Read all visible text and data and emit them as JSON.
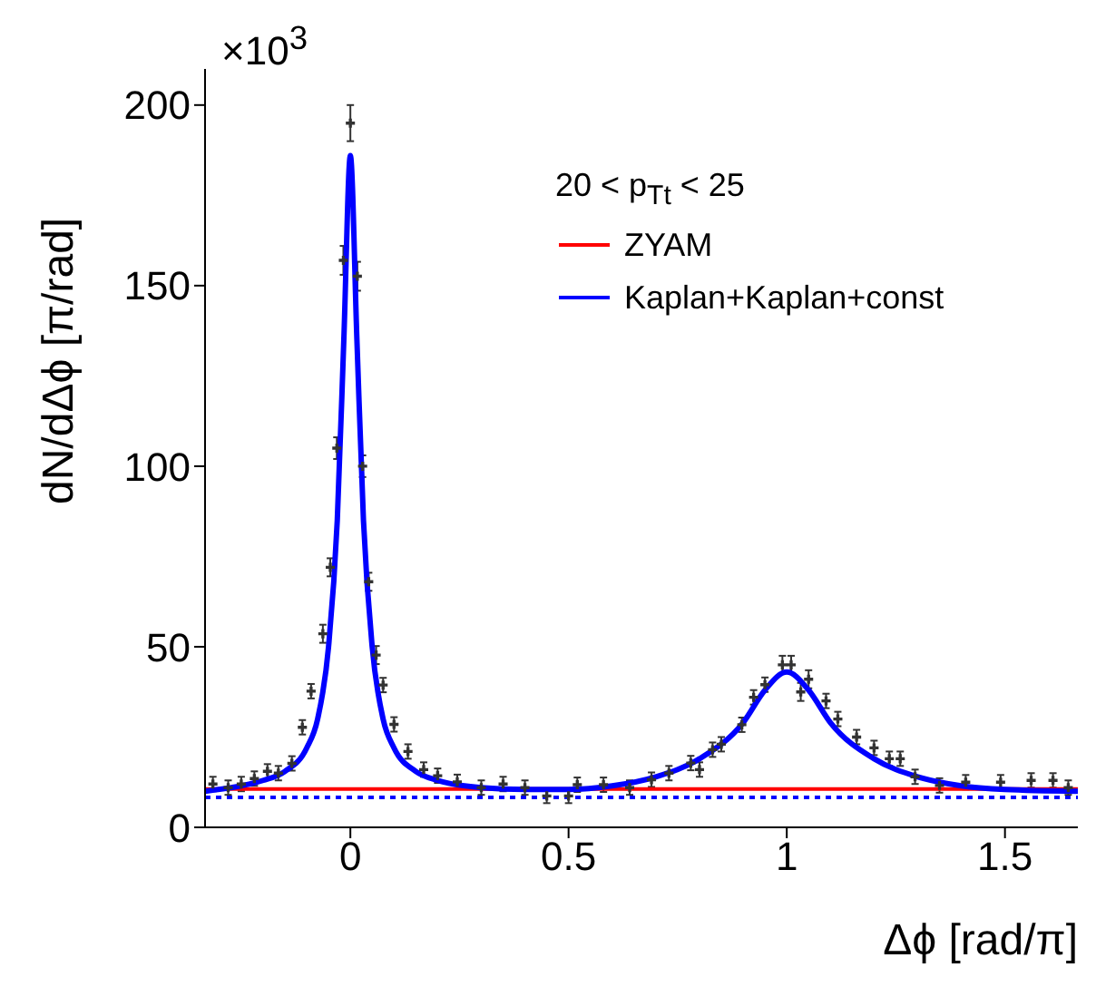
{
  "chart_data": {
    "type": "scatter",
    "xlabel": "Δϕ [rad/π]",
    "ylabel": "dN/dΔϕ [π/rad]",
    "legend_title": "20 < p$_{Tt}$ < 25",
    "annotations": [
      "×10$^{3}$"
    ],
    "xlim": [
      -0.333,
      1.667
    ],
    "xticks": [
      0,
      0.5,
      1,
      1.5
    ],
    "ylim": [
      0,
      210
    ],
    "yticks": [
      0,
      50,
      100,
      150,
      200
    ],
    "legend": "top right",
    "series": [
      {
        "marker": "cross",
        "color": "#333333",
        "x": [
          -0.315,
          -0.28,
          -0.25,
          -0.22,
          -0.19,
          -0.165,
          -0.134,
          -0.11,
          -0.09,
          -0.063,
          -0.046,
          -0.031,
          -0.016,
          0,
          0.016,
          0.028,
          0.042,
          0.059,
          0.075,
          0.1,
          0.132,
          0.168,
          0.2,
          0.245,
          0.3,
          0.35,
          0.4,
          0.45,
          0.5,
          0.52,
          0.58,
          0.64,
          0.69,
          0.73,
          0.78,
          0.8,
          0.83,
          0.85,
          0.897,
          0.924,
          0.95,
          0.99,
          1.01,
          1.032,
          1.05,
          1.09,
          1.117,
          1.16,
          1.2,
          1.235,
          1.26,
          1.294,
          1.35,
          1.41,
          1.49,
          1.56,
          1.61,
          1.645
        ],
        "values": [
          12,
          11,
          12,
          13.5,
          15.5,
          15,
          17.7,
          27.7,
          37.7,
          53.6,
          72,
          105,
          157,
          195,
          152.6,
          100,
          68,
          47.7,
          39.4,
          28.5,
          21,
          16,
          14.3,
          12.6,
          11,
          12,
          11,
          8.7,
          8.7,
          11.8,
          11.8,
          11,
          13.2,
          15,
          17.8,
          16,
          21.5,
          23,
          28.4,
          36,
          39.5,
          45,
          45,
          37.5,
          41,
          35,
          30,
          25,
          22,
          19,
          19,
          14,
          11.6,
          12.5,
          12.5,
          13,
          13,
          11
        ],
        "errors": [
          2,
          2,
          2,
          2,
          2,
          2,
          2,
          2,
          2,
          2.5,
          2.5,
          3,
          4,
          5,
          4,
          3,
          2.5,
          2.5,
          2,
          2,
          2,
          2,
          2,
          2,
          2,
          2,
          2,
          2,
          2,
          2,
          2,
          2,
          2,
          2,
          2,
          2,
          2,
          2,
          2,
          2,
          2,
          2.5,
          2.5,
          2.5,
          2.5,
          2,
          2,
          2,
          2,
          2,
          2,
          2,
          2,
          2,
          2,
          2,
          2,
          2
        ]
      },
      {
        "type": "line",
        "name": "ZYAM",
        "color": "#ff0000",
        "x": [
          -0.333,
          1.667
        ],
        "values": [
          10.6,
          10.6
        ]
      },
      {
        "type": "line",
        "name": "Kaplan+Kaplan+const",
        "color": "#0000ff",
        "x": [
          -0.333,
          -0.25,
          -0.2,
          -0.15,
          -0.1,
          -0.075,
          -0.05,
          -0.03,
          -0.015,
          0,
          0.015,
          0.03,
          0.05,
          0.075,
          0.1,
          0.15,
          0.2,
          0.3,
          0.4,
          0.5,
          0.6,
          0.7,
          0.8,
          0.9,
          0.95,
          1,
          1.05,
          1.1,
          1.2,
          1.3,
          1.4,
          1.5,
          1.667
        ],
        "values": [
          10,
          11.5,
          13,
          15.5,
          22,
          30,
          50,
          85,
          135,
          186,
          135,
          85,
          50,
          30,
          22,
          15.5,
          13,
          11,
          10.5,
          10.5,
          11.5,
          14,
          19,
          29,
          38,
          43,
          38,
          29,
          19,
          14,
          11.5,
          10.5,
          10
        ]
      }
    ],
    "ref_lines": [
      {
        "axis": "y",
        "value": 8.3,
        "color": "#0000ff",
        "line_style": "dotted"
      }
    ]
  }
}
